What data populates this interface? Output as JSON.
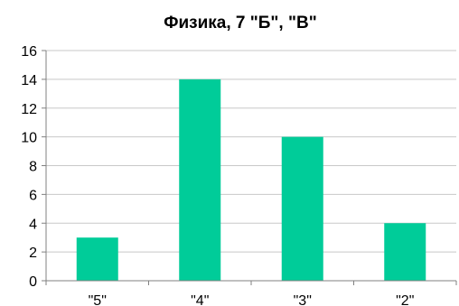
{
  "chart_data": {
    "type": "bar",
    "title": "Физика, 7 \"Б\", \"В\"",
    "categories": [
      "\"5\"",
      "\"4\"",
      "\"3\"",
      "\"2\""
    ],
    "values": [
      3,
      14,
      10,
      4
    ],
    "ylim": [
      0,
      16
    ],
    "yticks": [
      0,
      2,
      4,
      6,
      8,
      10,
      12,
      14,
      16
    ],
    "grid": true,
    "legend": "none",
    "colors": {
      "bar": "#00cc99",
      "grid": "#c8c8c8",
      "axis": "#808080"
    }
  }
}
